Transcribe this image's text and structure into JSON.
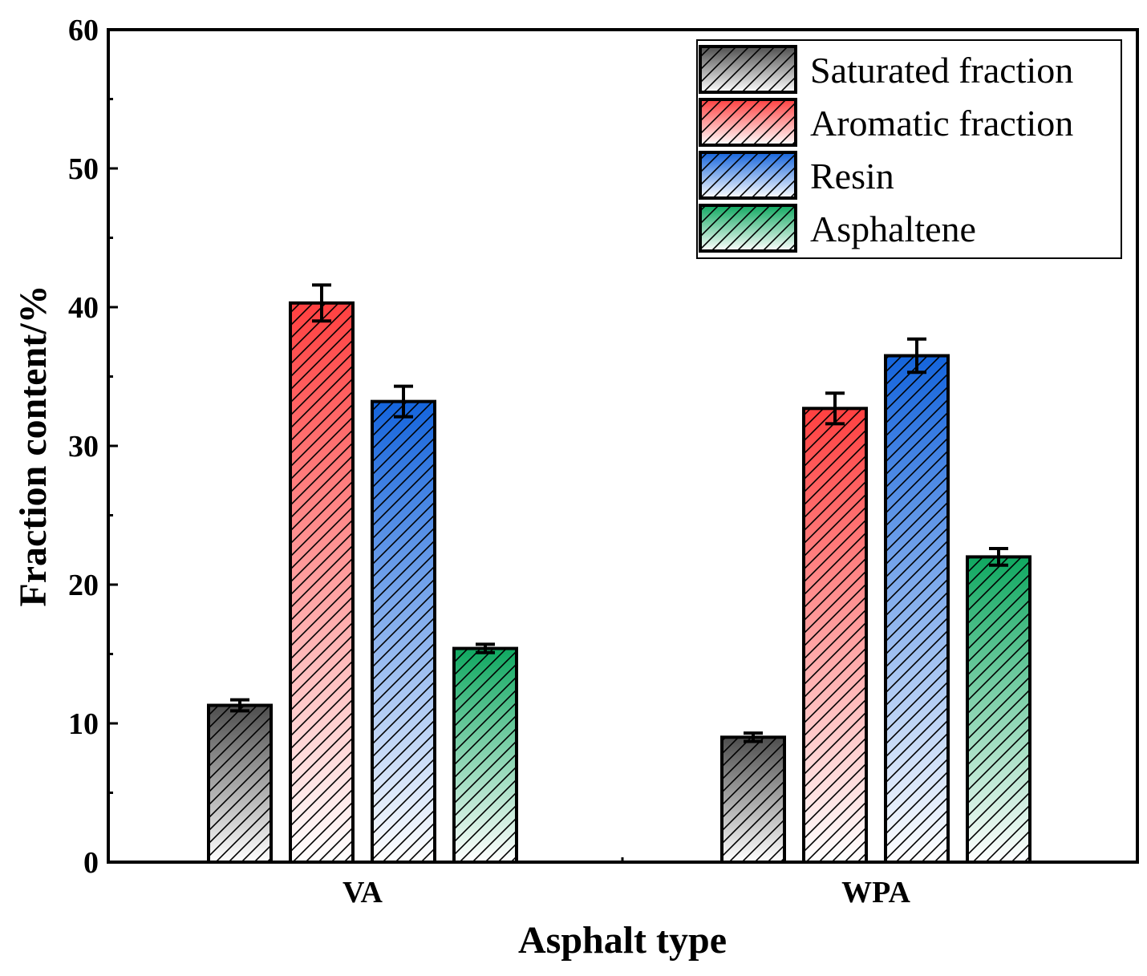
{
  "chart_data": {
    "type": "bar",
    "xlabel": "Asphalt type",
    "ylabel": "Fraction content/%",
    "ylim": [
      0,
      60
    ],
    "yticks": [
      0,
      10,
      20,
      30,
      40,
      50,
      60
    ],
    "categories": [
      "VA",
      "WPA"
    ],
    "legend_position": "top-right",
    "bar_pattern": "diagonal-hatch",
    "series": [
      {
        "name": "Saturated fraction",
        "color": "#4d4d4d",
        "values": [
          11.3,
          9.0
        ],
        "errors": [
          0.4,
          0.3
        ]
      },
      {
        "name": "Aromatic fraction",
        "color": "#ff4040",
        "values": [
          40.3,
          32.7
        ],
        "errors": [
          1.3,
          1.1
        ]
      },
      {
        "name": "Resin",
        "color": "#1464dc",
        "values": [
          33.2,
          36.5
        ],
        "errors": [
          1.1,
          1.2
        ]
      },
      {
        "name": "Asphaltene",
        "color": "#0fa860",
        "values": [
          15.4,
          22.0
        ],
        "errors": [
          0.3,
          0.6
        ]
      }
    ]
  }
}
